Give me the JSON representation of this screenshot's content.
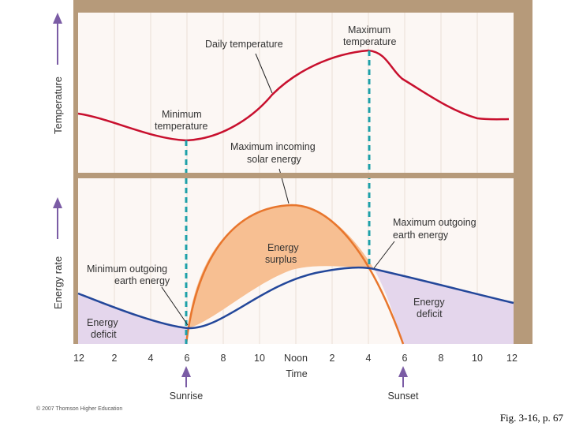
{
  "figure": {
    "top_panel": {
      "axis_title": "Temperature",
      "labels": {
        "daily_temperature": "Daily temperature",
        "maximum_temperature": [
          "Maximum",
          "temperature"
        ],
        "minimum_temperature": [
          "Minimum",
          "temperature"
        ]
      }
    },
    "bottom_panel": {
      "axis_title": "Energy rate",
      "labels": {
        "max_incoming": [
          "Maximum incoming",
          "solar energy"
        ],
        "max_outgoing": [
          "Maximum outgoing",
          "earth energy"
        ],
        "min_outgoing": [
          "Minimum outgoing",
          "earth energy"
        ],
        "surplus": [
          "Energy",
          "surplus"
        ],
        "deficit_left": [
          "Energy",
          "deficit"
        ],
        "deficit_right": [
          "Energy",
          "deficit"
        ]
      }
    },
    "x_axis": {
      "title": "Time",
      "ticks": [
        "12",
        "2",
        "4",
        "6",
        "8",
        "10",
        "Noon",
        "2",
        "4",
        "6",
        "8",
        "10",
        "12"
      ]
    },
    "markers": {
      "sunrise": "Sunrise",
      "sunset": "Sunset"
    },
    "copyright": "© 2007 Thomson Higher Education",
    "caption": "Fig. 3-16, p. 67",
    "colors": {
      "frame": "#b69a7a",
      "panel_bg": "#fcf7f4",
      "temperature_curve": "#c8102e",
      "outgoing_curve": "#23479a",
      "surplus_fill": "#f7bf92",
      "deficit_fill": "#e4d6ec",
      "guide_line": "#1ea0a8",
      "arrow": "#7b5ca5"
    }
  }
}
